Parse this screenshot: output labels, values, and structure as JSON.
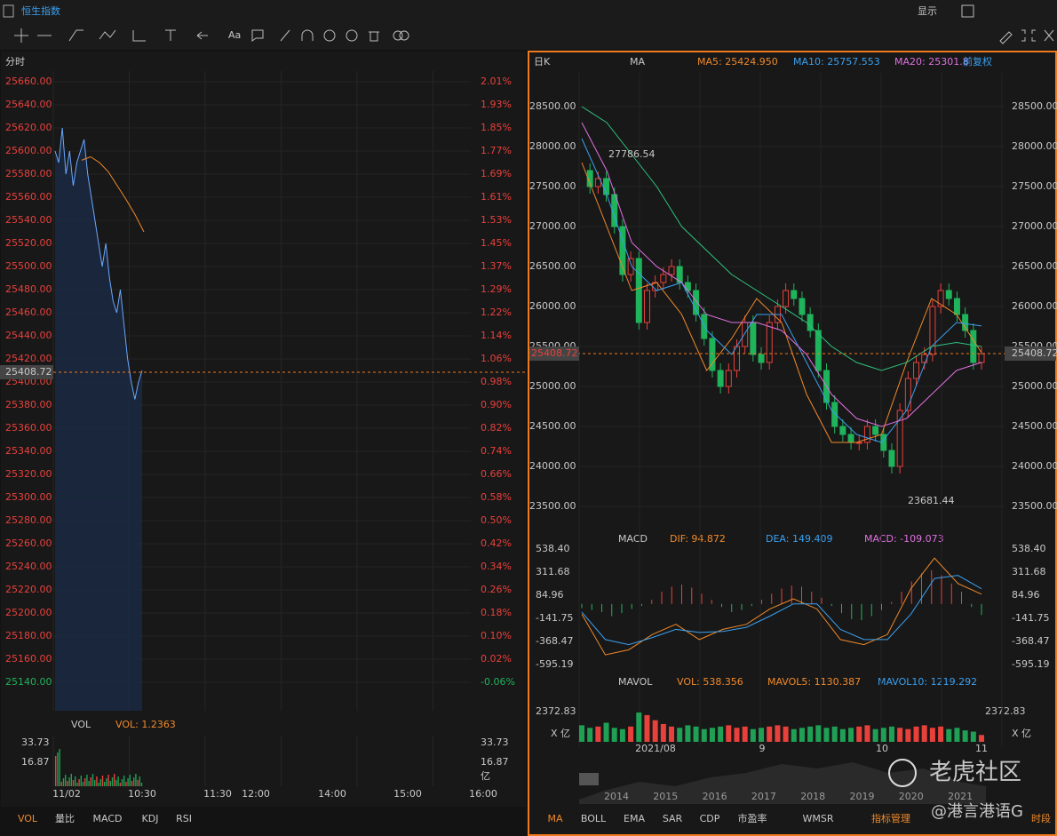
{
  "header": {
    "title": "恒生指数",
    "display": "显示",
    "font_tool": "Aa"
  },
  "left": {
    "period": "分时",
    "current": "25408.72",
    "price_labels": [
      "25660.00",
      "25640.00",
      "25620.00",
      "25600.00",
      "25580.00",
      "25560.00",
      "25540.00",
      "25520.00",
      "25500.00",
      "25480.00",
      "25460.00",
      "25440.00",
      "25420.00",
      "25400.00",
      "25380.00",
      "25360.00",
      "25340.00",
      "25320.00",
      "25300.00",
      "25280.00",
      "25260.00",
      "25240.00",
      "25220.00",
      "25200.00",
      "25180.00",
      "25160.00",
      "25140.00"
    ],
    "pct_labels": [
      "2.01%",
      "1.93%",
      "1.85%",
      "1.77%",
      "1.69%",
      "1.61%",
      "1.53%",
      "1.45%",
      "1.37%",
      "1.29%",
      "1.22%",
      "1.14%",
      "1.06%",
      "0.98%",
      "0.90%",
      "0.82%",
      "0.74%",
      "0.66%",
      "0.58%",
      "0.50%",
      "0.42%",
      "0.34%",
      "0.26%",
      "0.18%",
      "0.10%",
      "0.02%",
      "-0.06%"
    ],
    "ylim": [
      25140,
      25660
    ],
    "price": [
      25600,
      25590,
      25620,
      25580,
      25600,
      25570,
      25590,
      25600,
      25610,
      25580,
      25560,
      25540,
      25520,
      25500,
      25520,
      25490,
      25470,
      25460,
      25480,
      25450,
      25420,
      25400,
      25385,
      25400,
      25410
    ],
    "avg": [
      25592,
      25595,
      25590,
      25582,
      25570,
      25558,
      25545,
      25530
    ],
    "vol_label": "VOL",
    "vol_value": "VOL: 1.2363",
    "vol_ticks": [
      "33.73",
      "16.87"
    ],
    "vol_unit": "亿",
    "times": [
      "11/02",
      "10:30",
      "11:30",
      "12:00",
      "14:00",
      "15:00",
      "16:00"
    ],
    "tabs": [
      "VOL",
      "量比",
      "MACD",
      "KDJ",
      "RSI"
    ]
  },
  "right": {
    "period": "日K",
    "indicator": "MA",
    "ma5": "MA5: 25424.950",
    "ma10": "MA10: 25757.553",
    "ma20": "MA20: 25301.8",
    "adjust": "前复权",
    "current": "25408.72",
    "price_labels": [
      "28500.00",
      "28000.00",
      "27500.00",
      "27000.00",
      "26500.00",
      "26000.00",
      "25500.00",
      "25000.00",
      "24500.00",
      "24000.00",
      "23500.00"
    ],
    "ylim": [
      23500,
      28500
    ],
    "high_label": "27786.54",
    "low_label": "23681.44",
    "close": [
      27700,
      27500,
      27600,
      27400,
      27000,
      26400,
      26600,
      25800,
      26200,
      26300,
      26400,
      26500,
      26300,
      26200,
      25900,
      25600,
      25200,
      25000,
      25200,
      25500,
      25800,
      25400,
      25300,
      25800,
      26000,
      26200,
      26100,
      25900,
      25700,
      25200,
      24800,
      24500,
      24400,
      24300,
      24300,
      24500,
      24400,
      24200,
      24000,
      24700,
      25100,
      25300,
      25400,
      26000,
      26200,
      26100,
      25900,
      25700,
      25300,
      25408
    ],
    "ma5_line": [
      27800,
      27000,
      26200,
      26300,
      25900,
      25200,
      25600,
      26100,
      25800,
      24900,
      24300,
      24300,
      24400,
      25300,
      26100,
      25900,
      25424
    ],
    "ma10_line": [
      28100,
      27400,
      26500,
      26200,
      26300,
      25700,
      25400,
      25900,
      25900,
      25300,
      24700,
      24400,
      24300,
      24700,
      25500,
      25800,
      25757
    ],
    "ma20_line": [
      28300,
      27700,
      26800,
      26500,
      26300,
      25900,
      25800,
      25800,
      25700,
      25400,
      24900,
      24600,
      24500,
      24600,
      24900,
      25200,
      25301
    ],
    "ma60_line": [
      28500,
      28300,
      27900,
      27500,
      27000,
      26700,
      26400,
      26200,
      26000,
      25800,
      25500,
      25300,
      25200,
      25300,
      25500,
      25550,
      25500
    ],
    "macd_label": "MACD",
    "dif": "DIF: 94.872",
    "dea": "DEA: 149.409",
    "macd": "MACD: -109.073",
    "macd_labels": [
      "538.40",
      "311.68",
      "84.96",
      "-141.75",
      "-368.47",
      "-595.19"
    ],
    "macd_lim": [
      -595.19,
      538.4
    ],
    "dif_line": [
      -100,
      -500,
      -450,
      -300,
      -200,
      -350,
      -250,
      -200,
      -50,
      50,
      -50,
      -350,
      -400,
      -300,
      150,
      450,
      200,
      95
    ],
    "dea_line": [
      -80,
      -350,
      -400,
      -330,
      -250,
      -280,
      -270,
      -230,
      -120,
      0,
      0,
      -250,
      -350,
      -350,
      -100,
      250,
      280,
      149
    ],
    "hist": [
      -40,
      -60,
      -80,
      -120,
      -90,
      -50,
      -20,
      40,
      120,
      170,
      190,
      160,
      100,
      40,
      -30,
      -80,
      -60,
      -20,
      40,
      100,
      150,
      180,
      170,
      120,
      60,
      -20,
      -90,
      -150,
      -160,
      -120,
      -60,
      20,
      120,
      220,
      300,
      330,
      280,
      200,
      120,
      -30,
      -109
    ],
    "mavol_label": "MAVOL",
    "vol": "VOL: 538.356",
    "mavol5": "MAVOL5: 1130.387",
    "mavol10": "MAVOL10: 1219.292",
    "vol_tick": "2372.83",
    "vol_unit": "X 亿",
    "vol_lim": [
      0,
      2372.83
    ],
    "volumes": [
      1300,
      1100,
      1200,
      1500,
      1100,
      1000,
      1200,
      2300,
      2100,
      1700,
      1400,
      1200,
      1100,
      1300,
      1200,
      1000,
      1100,
      1200,
      1300,
      1100,
      1200,
      1000,
      1100,
      1200,
      1300,
      1200,
      1000,
      1100,
      1200,
      1300,
      1100,
      1200,
      1000,
      1100,
      1200,
      1300,
      1000,
      1100,
      1200,
      1100,
      1000,
      1200,
      1300,
      1100,
      1200,
      1000,
      1100,
      900,
      800,
      538
    ],
    "months": [
      "2021/08",
      "9",
      "10",
      "11"
    ],
    "years": [
      "2014",
      "2015",
      "2016",
      "2017",
      "2018",
      "2019",
      "2020",
      "2021"
    ],
    "tabs": [
      "MA",
      "BOLL",
      "EMA",
      "SAR",
      "CDP",
      "市盈率",
      "WMSR",
      "指标管理",
      "时段"
    ]
  },
  "watermark": {
    "brand": "老虎社区",
    "author": "@港言港语G"
  }
}
